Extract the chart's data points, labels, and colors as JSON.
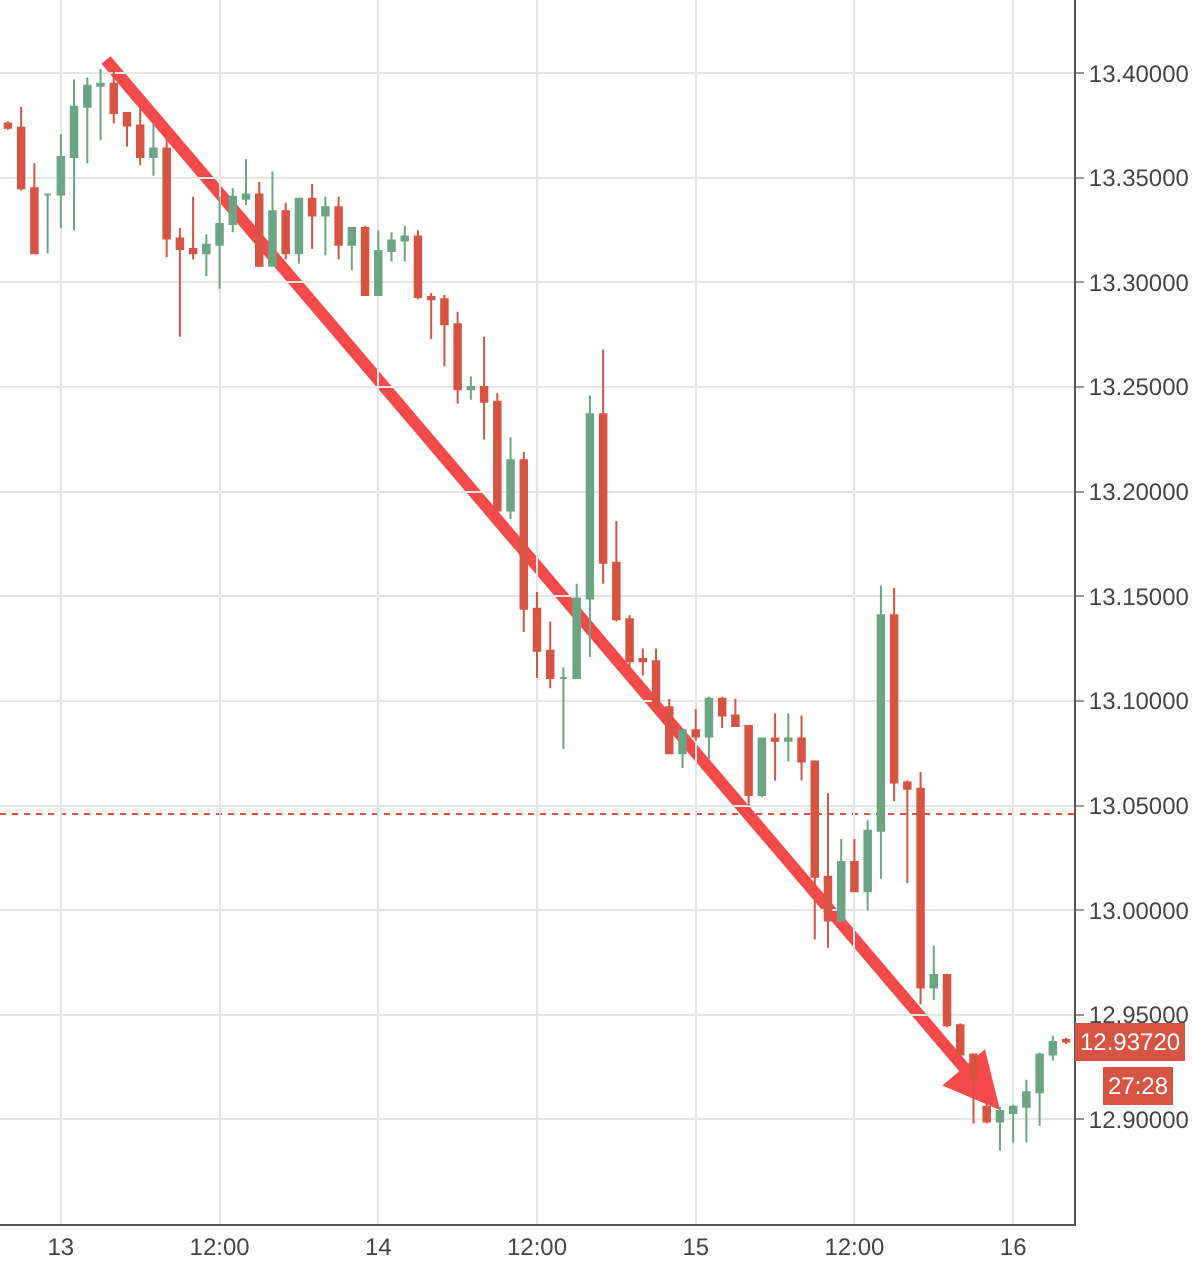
{
  "chart_data": {
    "type": "candlestick",
    "categories": [
      null,
      null,
      null,
      null,
      "13",
      null,
      null,
      null,
      null,
      null,
      null,
      null,
      null,
      null,
      null,
      null,
      "12:00",
      null,
      null,
      null,
      null,
      null,
      null,
      null,
      null,
      null,
      null,
      null,
      "14",
      null,
      null,
      null,
      null,
      null,
      null,
      null,
      null,
      null,
      null,
      null,
      "12:00",
      null,
      null,
      null,
      null,
      null,
      null,
      null,
      null,
      null,
      null,
      null,
      "15",
      null,
      null,
      null,
      null,
      null,
      null,
      null,
      null,
      null,
      null,
      null,
      "12:00",
      null,
      null,
      null,
      null,
      null,
      null,
      null,
      null,
      null,
      null,
      null,
      "16",
      null,
      null,
      null,
      null
    ],
    "ohlc": [
      [
        13.376,
        13.377,
        13.373,
        13.374
      ],
      [
        13.374,
        13.384,
        13.344,
        13.345
      ],
      [
        13.345,
        13.357,
        13.314,
        13.314
      ],
      [
        13.342,
        13.342,
        13.314,
        13.342
      ],
      [
        13.342,
        13.371,
        13.326,
        13.36
      ],
      [
        13.36,
        13.397,
        13.325,
        13.384
      ],
      [
        13.384,
        13.398,
        13.357,
        13.394
      ],
      [
        13.394,
        13.402,
        13.368,
        13.395
      ],
      [
        13.395,
        13.402,
        13.376,
        13.381
      ],
      [
        13.381,
        13.381,
        13.365,
        13.375
      ],
      [
        13.375,
        13.385,
        13.356,
        13.36
      ],
      [
        13.36,
        13.376,
        13.351,
        13.364
      ],
      [
        13.364,
        13.37,
        13.312,
        13.321
      ],
      [
        13.321,
        13.326,
        13.274,
        13.316
      ],
      [
        13.316,
        13.341,
        13.311,
        13.314
      ],
      [
        13.314,
        13.323,
        13.303,
        13.318
      ],
      [
        13.318,
        13.341,
        13.297,
        13.328
      ],
      [
        13.328,
        13.345,
        13.324,
        13.341
      ],
      [
        13.34,
        13.359,
        13.337,
        13.342
      ],
      [
        13.342,
        13.348,
        13.308,
        13.308
      ],
      [
        13.308,
        13.353,
        13.308,
        13.334
      ],
      [
        13.334,
        13.338,
        13.311,
        13.314
      ],
      [
        13.314,
        13.34,
        13.309,
        13.34
      ],
      [
        13.34,
        13.347,
        13.316,
        13.332
      ],
      [
        13.332,
        13.341,
        13.313,
        13.336
      ],
      [
        13.336,
        13.341,
        13.311,
        13.318
      ],
      [
        13.318,
        13.326,
        13.306,
        13.326
      ],
      [
        13.326,
        13.327,
        13.294,
        13.294
      ],
      [
        13.294,
        13.325,
        13.294,
        13.315
      ],
      [
        13.315,
        13.324,
        13.31,
        13.32
      ],
      [
        13.32,
        13.327,
        13.31,
        13.322
      ],
      [
        13.322,
        13.325,
        13.292,
        13.293
      ],
      [
        13.293,
        13.295,
        13.273,
        13.292
      ],
      [
        13.292,
        13.294,
        13.26,
        13.28
      ],
      [
        13.28,
        13.286,
        13.242,
        13.249
      ],
      [
        13.249,
        13.255,
        13.244,
        13.25
      ],
      [
        13.25,
        13.274,
        13.225,
        13.243
      ],
      [
        13.243,
        13.247,
        13.19,
        13.191
      ],
      [
        13.191,
        13.226,
        13.187,
        13.215
      ],
      [
        13.215,
        13.219,
        13.133,
        13.144
      ],
      [
        13.144,
        13.152,
        13.111,
        13.124
      ],
      [
        13.124,
        13.138,
        13.106,
        13.111
      ],
      [
        13.111,
        13.116,
        13.077,
        13.111
      ],
      [
        13.111,
        13.156,
        13.111,
        13.149
      ],
      [
        13.149,
        13.246,
        13.121,
        13.237
      ],
      [
        13.237,
        13.268,
        13.156,
        13.166
      ],
      [
        13.166,
        13.186,
        13.138,
        13.139
      ],
      [
        13.139,
        13.141,
        13.115,
        13.119
      ],
      [
        13.12,
        13.125,
        13.112,
        13.119
      ],
      [
        13.119,
        13.125,
        13.097,
        13.097
      ],
      [
        13.097,
        13.101,
        13.075,
        13.075
      ],
      [
        13.075,
        13.086,
        13.068,
        13.086
      ],
      [
        13.086,
        13.096,
        13.081,
        13.083
      ],
      [
        13.083,
        13.102,
        13.072,
        13.101
      ],
      [
        13.101,
        13.102,
        13.087,
        13.093
      ],
      [
        13.093,
        13.101,
        13.088,
        13.088
      ],
      [
        13.088,
        13.088,
        13.05,
        13.055
      ],
      [
        13.055,
        13.082,
        13.054,
        13.082
      ],
      [
        13.082,
        13.094,
        13.062,
        13.081
      ],
      [
        13.081,
        13.094,
        13.071,
        13.082
      ],
      [
        13.082,
        13.093,
        13.062,
        13.071
      ],
      [
        13.071,
        13.071,
        12.986,
        13.016
      ],
      [
        13.016,
        13.056,
        12.982,
        12.995
      ],
      [
        12.995,
        13.034,
        12.995,
        13.023
      ],
      [
        13.023,
        13.034,
        13.009,
        13.009
      ],
      [
        13.009,
        13.043,
        13.0,
        13.038
      ],
      [
        13.038,
        13.155,
        13.015,
        13.141
      ],
      [
        13.141,
        13.154,
        13.052,
        13.061
      ],
      [
        13.061,
        13.062,
        13.013,
        13.058
      ],
      [
        13.058,
        13.066,
        12.955,
        12.963
      ],
      [
        12.963,
        12.983,
        12.957,
        12.969
      ],
      [
        12.969,
        12.969,
        12.944,
        12.945
      ],
      [
        12.945,
        12.946,
        12.93,
        12.931
      ],
      [
        12.931,
        12.931,
        12.898,
        12.919
      ],
      [
        12.906,
        12.908,
        12.898,
        12.899
      ],
      [
        12.899,
        12.906,
        12.885,
        12.904
      ],
      [
        12.903,
        12.907,
        12.889,
        12.906
      ],
      [
        12.906,
        12.919,
        12.889,
        12.913
      ],
      [
        12.913,
        12.932,
        12.897,
        12.931
      ],
      [
        12.931,
        12.94,
        12.928,
        12.937
      ],
      [
        12.938,
        12.939,
        12.936,
        12.9372
      ]
    ],
    "colors": [
      "#d75442",
      "#d75442",
      "#d75442",
      "#6ba583",
      "#6ba583",
      "#6ba583",
      "#6ba583",
      "#6ba583",
      "#d75442",
      "#d75442",
      "#d75442",
      "#6ba583",
      "#d75442",
      "#d75442",
      "#d75442",
      "#6ba583",
      "#6ba583",
      "#6ba583",
      "#6ba583",
      "#d75442",
      "#6ba583",
      "#d75442",
      "#6ba583",
      "#d75442",
      "#6ba583",
      "#d75442",
      "#6ba583",
      "#d75442",
      "#6ba583",
      "#6ba583",
      "#6ba583",
      "#d75442",
      "#d75442",
      "#d75442",
      "#d75442",
      "#6ba583",
      "#d75442",
      "#d75442",
      "#6ba583",
      "#d75442",
      "#d75442",
      "#d75442",
      "#6ba583",
      "#6ba583",
      "#6ba583",
      "#d75442",
      "#d75442",
      "#d75442",
      "#d75442",
      "#d75442",
      "#d75442",
      "#6ba583",
      "#d75442",
      "#6ba583",
      "#d75442",
      "#d75442",
      "#d75442",
      "#6ba583",
      "#d75442",
      "#6ba583",
      "#d75442",
      "#d75442",
      "#d75442",
      "#6ba583",
      "#d75442",
      "#6ba583",
      "#6ba583",
      "#d75442",
      "#d75442",
      "#d75442",
      "#6ba583",
      "#d75442",
      "#d75442",
      "#d75442",
      "#d75442",
      "#6ba583",
      "#6ba583",
      "#6ba583",
      "#6ba583",
      "#6ba583",
      "#d75442"
    ],
    "ylim": [
      12.85,
      13.435
    ],
    "yticks": [
      {
        "value": 12.9,
        "label": "12.90000"
      },
      {
        "value": 12.95,
        "label": "12.95000"
      },
      {
        "value": 13.0,
        "label": "13.00000"
      },
      {
        "value": 13.05,
        "label": "13.05000"
      },
      {
        "value": 13.1,
        "label": "13.10000"
      },
      {
        "value": 13.15,
        "label": "13.15000"
      },
      {
        "value": 13.2,
        "label": "13.20000"
      },
      {
        "value": 13.25,
        "label": "13.25000"
      },
      {
        "value": 13.3,
        "label": "13.30000"
      },
      {
        "value": 13.35,
        "label": "13.35000"
      },
      {
        "value": 13.4,
        "label": "13.40000"
      }
    ],
    "ref_lines": [
      {
        "axis": "y",
        "value": 13.046,
        "color": "#d75442",
        "line_style": "dotted"
      }
    ],
    "annotations": [
      "12.93720",
      "27:28"
    ],
    "grid": true
  }
}
